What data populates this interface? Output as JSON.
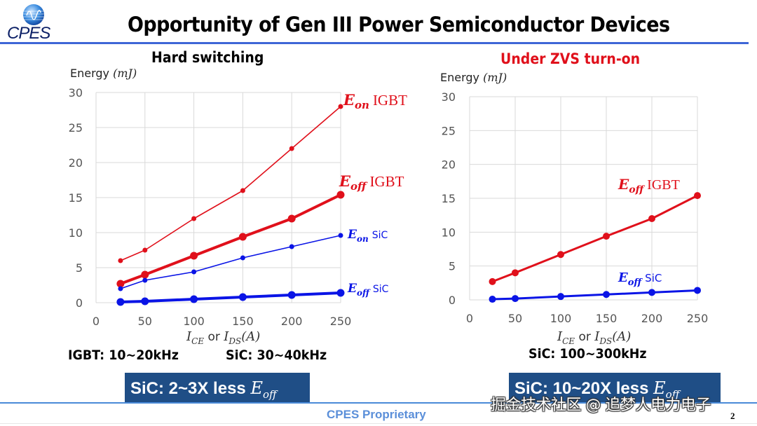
{
  "header": {
    "logo_text": "CPES",
    "title": "Opportunity of Gen III Power Semiconductor Devices"
  },
  "colors": {
    "igbt": "#e0101b",
    "sic": "#0a14e6",
    "grid": "#d9d9d9",
    "callout_bg": "#1f4e86",
    "rule": "#3e66d6",
    "footer_text": "#5b8fd9"
  },
  "left_panel": {
    "title": "Hard switching",
    "ylabel_prefix": "Energy ",
    "ylabel_unit": "(mJ)",
    "xlabel": "I_CE or I_DS(A)",
    "freq_igbt": "IGBT: 10~20kHz",
    "freq_sic": "SiC: 30~40kHz",
    "callout_prefix": "SiC: 2~3X less ",
    "callout_sym": "E",
    "callout_sub": "off"
  },
  "right_panel": {
    "title": "Under ZVS turn-on",
    "ylabel_prefix": "Energy ",
    "ylabel_unit": "(mJ)",
    "xlabel": "I_CE or I_DS(A)",
    "freq_sic": "SiC: 100~300kHz",
    "callout_prefix": "SiC: 10~20X less ",
    "callout_sym": "E",
    "callout_sub": "off"
  },
  "footer": {
    "text": "CPES Proprietary",
    "page_number": "2",
    "watermark": "掘金技术社区 @ 追梦人电力电子"
  },
  "chart_data": [
    {
      "type": "line",
      "title": "Hard switching",
      "xlabel": "I_CE or I_DS (A)",
      "ylabel": "Energy (mJ)",
      "x": [
        25,
        50,
        100,
        150,
        200,
        250
      ],
      "xlim": [
        0,
        250
      ],
      "ylim": [
        0,
        30
      ],
      "xticks": [
        0,
        50,
        100,
        150,
        200,
        250
      ],
      "yticks": [
        0,
        5,
        10,
        15,
        20,
        25,
        30
      ],
      "grid": true,
      "series": [
        {
          "name": "Eon IGBT",
          "label_main": "E",
          "label_sub": "on",
          "label_suffix": "IGBT",
          "device": "igbt",
          "weight": "thin",
          "values": [
            6,
            7.5,
            12,
            16,
            22,
            28
          ]
        },
        {
          "name": "Eoff IGBT",
          "label_main": "E",
          "label_sub": "off",
          "label_suffix": "IGBT",
          "device": "igbt",
          "weight": "thick",
          "values": [
            2.7,
            4,
            6.7,
            9.4,
            12,
            15.4
          ]
        },
        {
          "name": "Eon SiC",
          "label_main": "E",
          "label_sub": "on",
          "label_suffix": "SiC",
          "device": "sic",
          "weight": "thin",
          "values": [
            2,
            3.2,
            4.4,
            6.4,
            8,
            9.6
          ]
        },
        {
          "name": "Eoff SiC",
          "label_main": "E",
          "label_sub": "off",
          "label_suffix": "SiC",
          "device": "sic",
          "weight": "thick",
          "values": [
            0.1,
            0.2,
            0.5,
            0.8,
            1.1,
            1.4
          ]
        }
      ]
    },
    {
      "type": "line",
      "title": "Under ZVS turn-on",
      "xlabel": "I_CE or I_DS (A)",
      "ylabel": "Energy (mJ)",
      "x": [
        25,
        50,
        100,
        150,
        200,
        250
      ],
      "xlim": [
        0,
        250
      ],
      "ylim": [
        0,
        30
      ],
      "xticks": [
        0,
        50,
        100,
        150,
        200,
        250
      ],
      "yticks": [
        0,
        5,
        10,
        15,
        20,
        25,
        30
      ],
      "grid": true,
      "series": [
        {
          "name": "Eoff IGBT",
          "label_main": "E",
          "label_sub": "off",
          "label_suffix": "IGBT",
          "device": "igbt",
          "weight": "medium",
          "values": [
            2.7,
            4,
            6.7,
            9.4,
            12,
            15.4
          ]
        },
        {
          "name": "Eoff SiC",
          "label_main": "E",
          "label_sub": "off",
          "label_suffix": "SiC",
          "device": "sic",
          "weight": "medium",
          "values": [
            0.1,
            0.2,
            0.5,
            0.8,
            1.1,
            1.4
          ]
        }
      ]
    }
  ]
}
